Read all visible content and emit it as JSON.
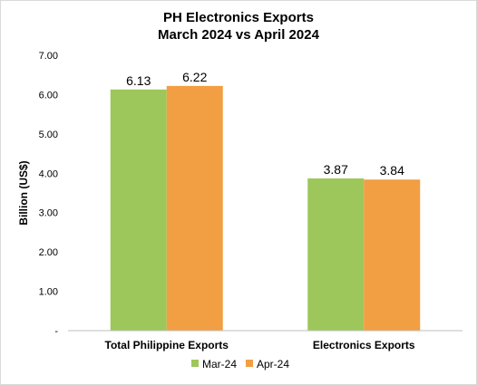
{
  "chart_data": {
    "type": "bar",
    "title_line1": "PH Electronics Exports",
    "title_line2": "March 2024 vs April 2024",
    "ylabel": "Billion (US$)",
    "xlabel": "",
    "categories": [
      "Total Philippine Exports",
      "Electronics Exports"
    ],
    "series": [
      {
        "name": "Mar-24",
        "values": [
          6.13,
          3.87
        ],
        "color": "#9dc75a"
      },
      {
        "name": "Apr-24",
        "values": [
          6.22,
          3.84
        ],
        "color": "#f29e42"
      }
    ],
    "data_labels": [
      [
        "6.13",
        "3.87"
      ],
      [
        "6.22",
        "3.84"
      ]
    ],
    "ylim": [
      0,
      7
    ],
    "yticks": [
      {
        "value": 0,
        "label": "-"
      },
      {
        "value": 1,
        "label": "1.00"
      },
      {
        "value": 2,
        "label": "2.00"
      },
      {
        "value": 3,
        "label": "3.00"
      },
      {
        "value": 4,
        "label": "4.00"
      },
      {
        "value": 5,
        "label": "5.00"
      },
      {
        "value": 6,
        "label": "6.00"
      },
      {
        "value": 7,
        "label": "7.00"
      }
    ],
    "grid": false,
    "legend_position": "bottom"
  }
}
